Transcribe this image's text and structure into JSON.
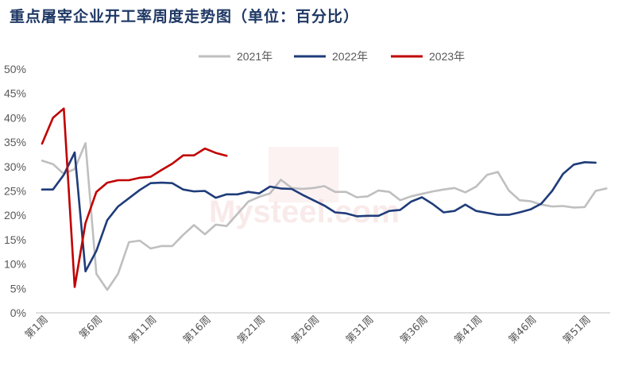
{
  "chart_data": {
    "type": "line",
    "title": "重点屠宰企业开工率周度走势图（单位：百分比）",
    "ylim": [
      0,
      50
    ],
    "yticks": [
      "0%",
      "5%",
      "10%",
      "15%",
      "20%",
      "25%",
      "30%",
      "35%",
      "40%",
      "45%",
      "50%"
    ],
    "xticks": [
      "第1周",
      "第6周",
      "第11周",
      "第16周",
      "第21周",
      "第26周",
      "第31周",
      "第36周",
      "第41周",
      "第46周",
      "第51周"
    ],
    "legend_position": "top",
    "grid": false,
    "watermark": "Mysteel.com",
    "series": [
      {
        "name": "2021年",
        "color": "#bfbfbf",
        "values": [
          31.2,
          30.5,
          28.5,
          29.5,
          34.8,
          8,
          4.7,
          8,
          14.5,
          14.8,
          13.2,
          13.7,
          13.7,
          16,
          18,
          16.1,
          18.1,
          17.8,
          20.3,
          22.8,
          23.8,
          24.5,
          27.3,
          25.6,
          25.4,
          25.6,
          26,
          24.8,
          24.8,
          23.7,
          23.9,
          25.1,
          24.8,
          23.1,
          23.9,
          24.4,
          24.9,
          25.3,
          25.6,
          24.7,
          25.9,
          28.3,
          28.9,
          25.1,
          23.1,
          22.9,
          22.2,
          21.8,
          21.9,
          21.6,
          21.7,
          25,
          25.5
        ]
      },
      {
        "name": "2022年",
        "color": "#1f3c7a",
        "values": [
          25.3,
          25.3,
          28.3,
          32.9,
          8.5,
          12.7,
          19,
          21.8,
          23.5,
          25.2,
          26.6,
          26.7,
          26.6,
          25.3,
          24.9,
          25,
          23.6,
          24.3,
          24.3,
          24.8,
          24.5,
          25.9,
          25.5,
          25.4,
          24.2,
          23.1,
          22,
          20.6,
          20.4,
          19.8,
          19.9,
          19.9,
          20.9,
          21.1,
          22.8,
          23.7,
          22.3,
          20.6,
          20.9,
          22.2,
          20.9,
          20.5,
          20.1,
          20.1,
          20.6,
          21.2,
          22.4,
          25,
          28.5,
          30.4,
          30.9,
          30.8
        ]
      },
      {
        "name": "2023年",
        "color": "#c00000",
        "values": [
          34.7,
          40,
          41.9,
          5.3,
          18.4,
          24.8,
          26.7,
          27.2,
          27.2,
          27.7,
          27.9,
          29.3,
          30.6,
          32.3,
          32.3,
          33.7,
          32.8,
          32.2
        ]
      }
    ]
  }
}
